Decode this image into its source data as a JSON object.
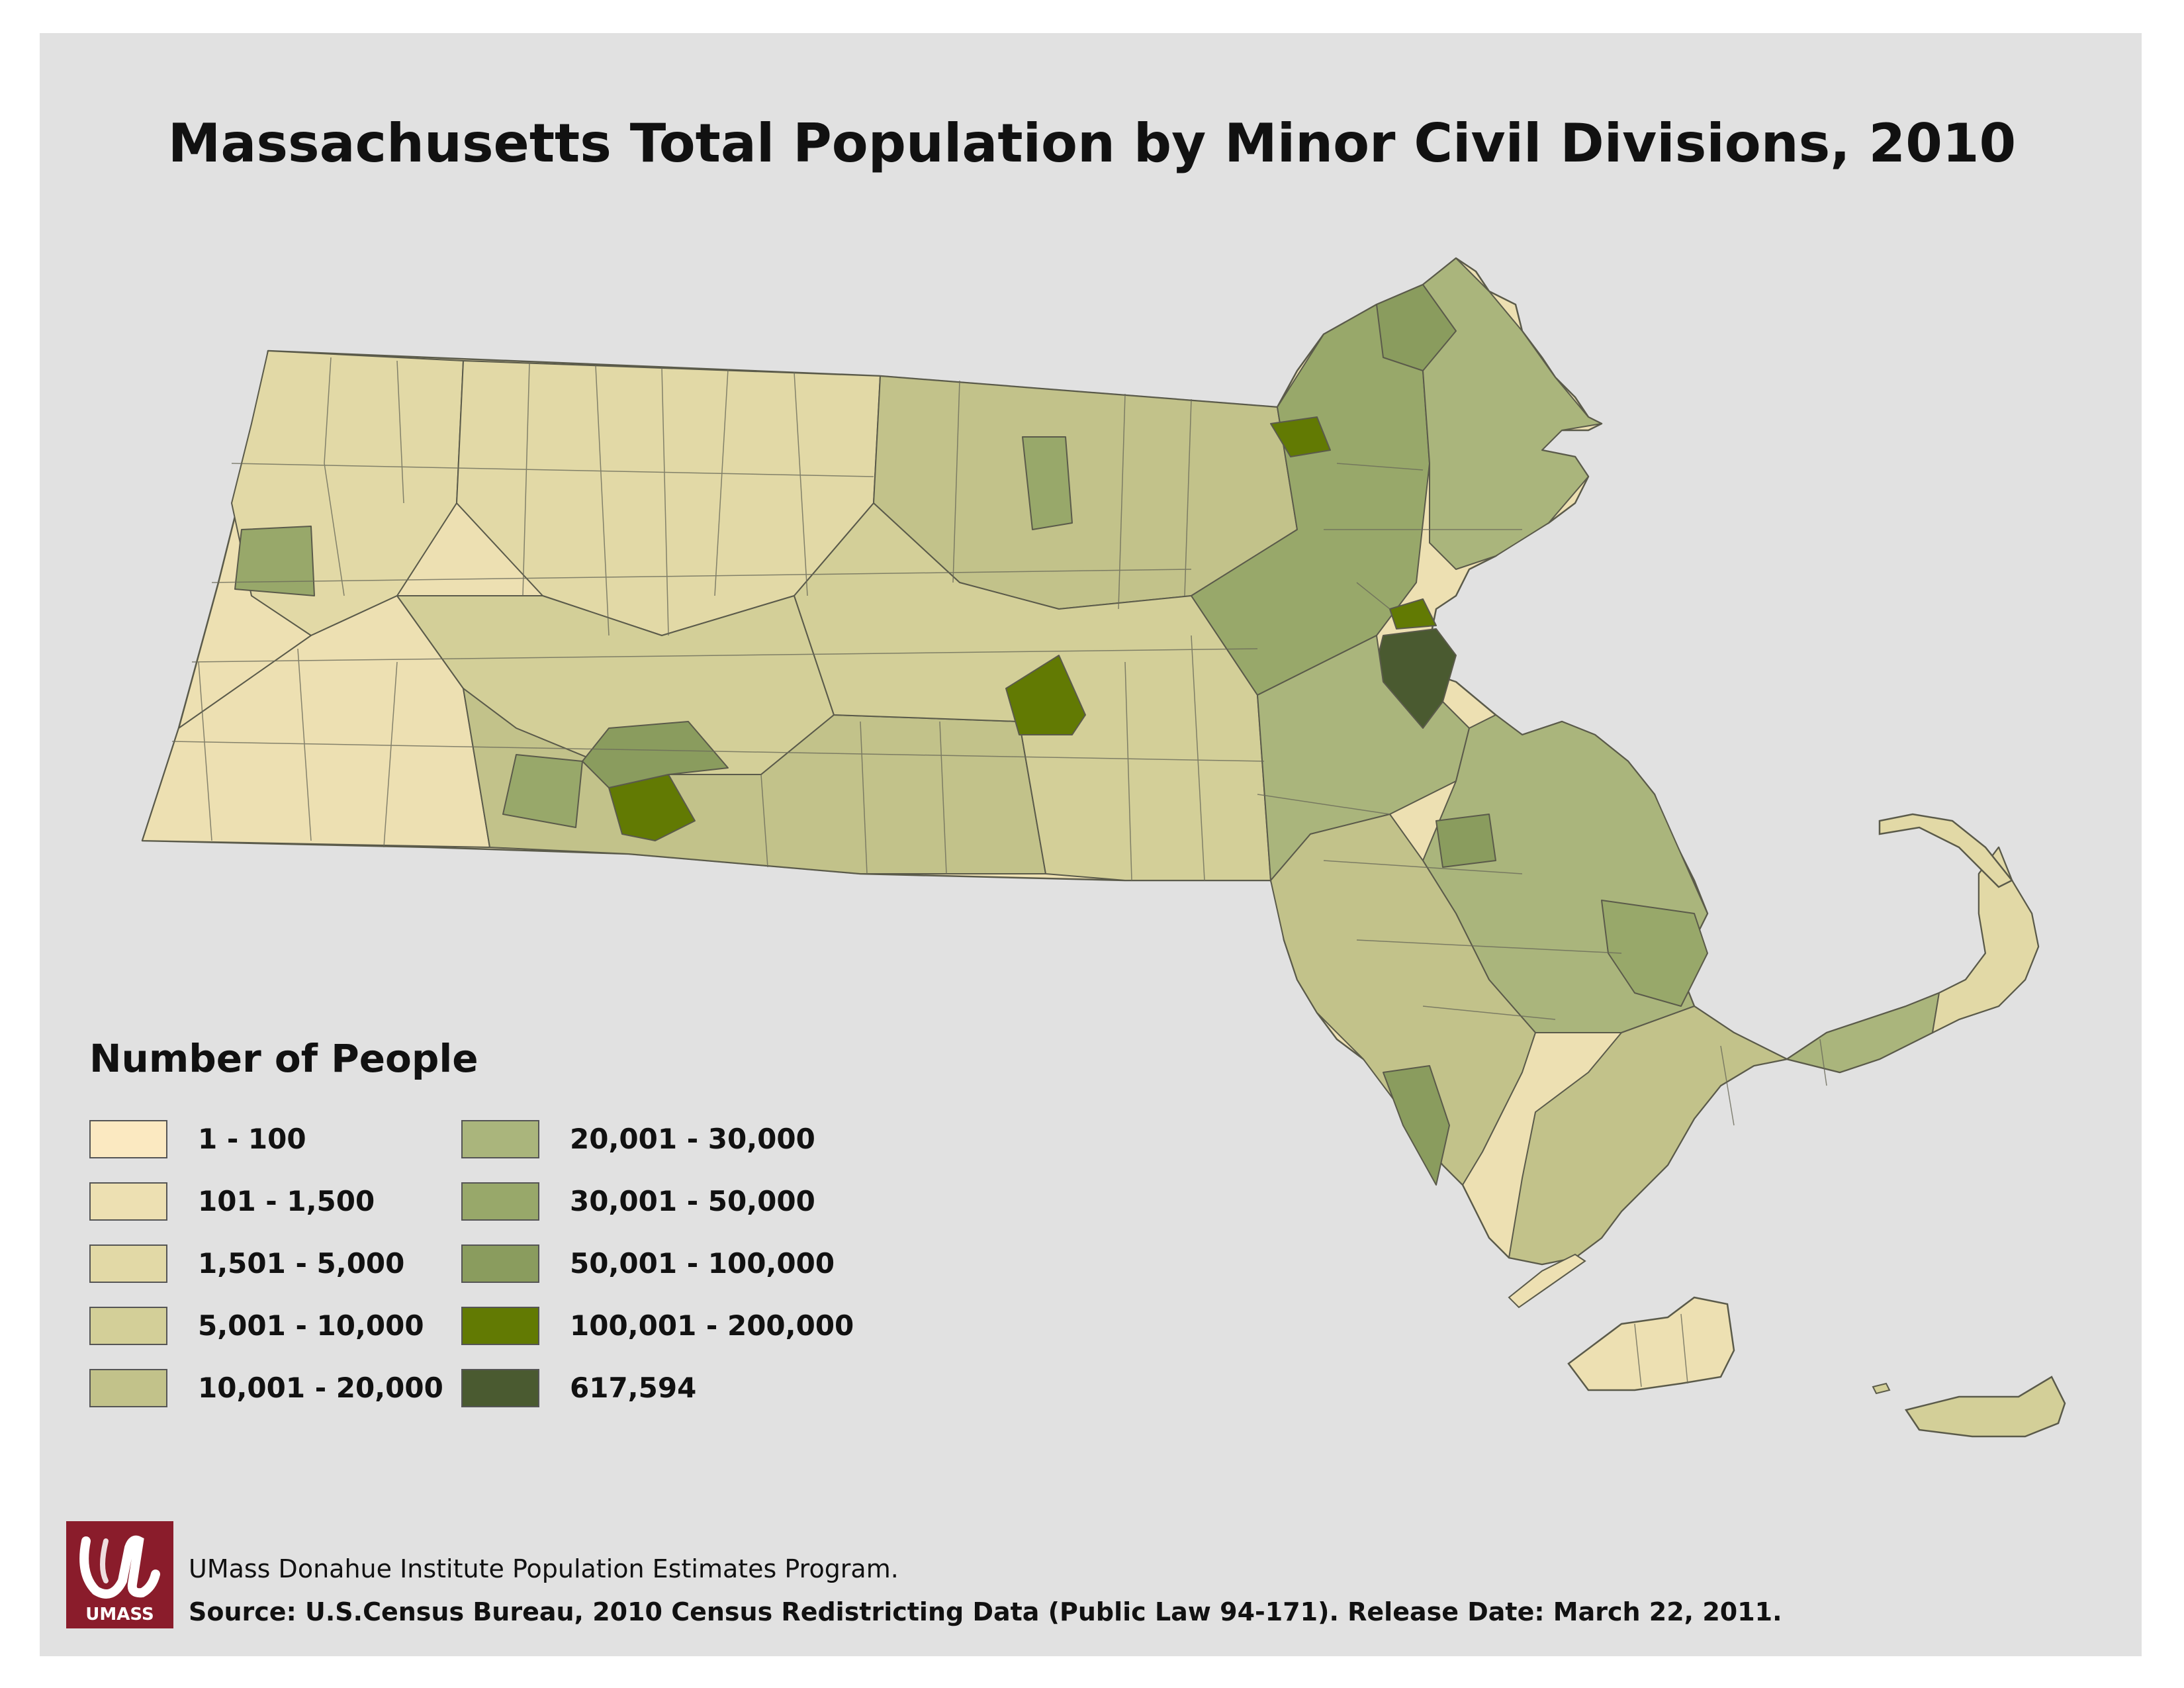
{
  "title": "Massachusetts Total Population by Minor Civil Divisions, 2010",
  "legend": {
    "title": "Number of People",
    "classes": [
      {
        "label": "1 - 100",
        "color": "#fbe9c1"
      },
      {
        "label": "101 - 1,500",
        "color": "#ede0b2"
      },
      {
        "label": "1,501 - 5,000",
        "color": "#e2d9a6"
      },
      {
        "label": "5,001 - 10,000",
        "color": "#d3cf98"
      },
      {
        "label": "10,001 - 20,000",
        "color": "#c2c28a"
      },
      {
        "label": "20,001 - 30,000",
        "color": "#aab57c"
      },
      {
        "label": "30,001 - 50,000",
        "color": "#98a86a"
      },
      {
        "label": "50,001 - 100,000",
        "color": "#8a9c5e"
      },
      {
        "label": "100,001 - 200,000",
        "color": "#627a03"
      },
      {
        "label": "617,594",
        "color": "#4a5a30"
      }
    ]
  },
  "logo": {
    "text": "UMASS",
    "color": "#8a1c2b"
  },
  "credits": {
    "line1": "UMass Donahue Institute Population Estimates Program.",
    "line2": "Source: U.S.Census Bureau, 2010 Census Redistricting Data (Public Law 94-171). Release Date: March 22, 2011."
  },
  "colors": {
    "background": "#e1e1e1",
    "border": "#5a5a4a"
  }
}
